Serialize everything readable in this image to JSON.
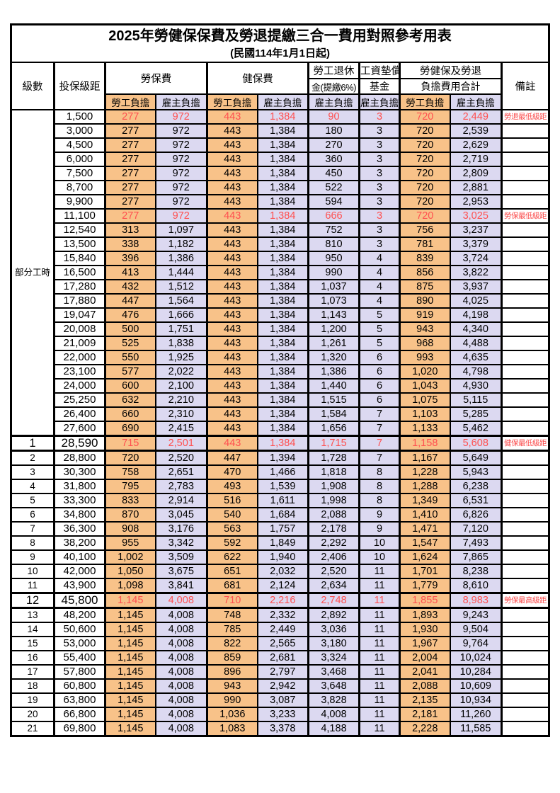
{
  "title": "2025年勞健保保費及勞退提繳三合一費用對照參考用表",
  "subtitle": "(民國114年1月1日起)",
  "header": {
    "level": "級數",
    "bracket": "投保級距",
    "labor_insurance": "勞保費",
    "health_insurance": "健保費",
    "pension_line1": "勞工退休",
    "pension_line2": "金(提繳6%)",
    "wage_fund_line1": "工資墊償",
    "wage_fund_line2": "基金",
    "total_line1": "勞健保及勞退",
    "total_line2": "負擔費用合計",
    "remark": "備註",
    "worker_label": "勞工負擔",
    "employer_label": "雇主負擔"
  },
  "colors": {
    "worker_fill": "#F8C289",
    "employer_fill": "#DCD9F1",
    "highlight_red": "#FF5050",
    "border": "#000000"
  },
  "part_time_label": "部分工時",
  "part_time_span": 23,
  "rows": [
    {
      "level": "",
      "bracket": "1,500",
      "values": [
        "277",
        "972",
        "443",
        "1,384",
        "90",
        "3",
        "720",
        "2,449"
      ],
      "note": "勞退最低級距",
      "red": true,
      "emphasis": false
    },
    {
      "level": "",
      "bracket": "3,000",
      "values": [
        "277",
        "972",
        "443",
        "1,384",
        "180",
        "3",
        "720",
        "2,539"
      ],
      "note": "",
      "red": false,
      "emphasis": false
    },
    {
      "level": "",
      "bracket": "4,500",
      "values": [
        "277",
        "972",
        "443",
        "1,384",
        "270",
        "3",
        "720",
        "2,629"
      ],
      "note": "",
      "red": false,
      "emphasis": false
    },
    {
      "level": "",
      "bracket": "6,000",
      "values": [
        "277",
        "972",
        "443",
        "1,384",
        "360",
        "3",
        "720",
        "2,719"
      ],
      "note": "",
      "red": false,
      "emphasis": false
    },
    {
      "level": "",
      "bracket": "7,500",
      "values": [
        "277",
        "972",
        "443",
        "1,384",
        "450",
        "3",
        "720",
        "2,809"
      ],
      "note": "",
      "red": false,
      "emphasis": false
    },
    {
      "level": "",
      "bracket": "8,700",
      "values": [
        "277",
        "972",
        "443",
        "1,384",
        "522",
        "3",
        "720",
        "2,881"
      ],
      "note": "",
      "red": false,
      "emphasis": false
    },
    {
      "level": "",
      "bracket": "9,900",
      "values": [
        "277",
        "972",
        "443",
        "1,384",
        "594",
        "3",
        "720",
        "2,953"
      ],
      "note": "",
      "red": false,
      "emphasis": false
    },
    {
      "level": "",
      "bracket": "11,100",
      "values": [
        "277",
        "972",
        "443",
        "1,384",
        "666",
        "3",
        "720",
        "3,025"
      ],
      "note": "勞保最低級距",
      "red": true,
      "emphasis": false
    },
    {
      "level": "",
      "bracket": "12,540",
      "values": [
        "313",
        "1,097",
        "443",
        "1,384",
        "752",
        "3",
        "756",
        "3,237"
      ],
      "note": "",
      "red": false,
      "emphasis": false
    },
    {
      "level": "",
      "bracket": "13,500",
      "values": [
        "338",
        "1,182",
        "443",
        "1,384",
        "810",
        "3",
        "781",
        "3,379"
      ],
      "note": "",
      "red": false,
      "emphasis": false
    },
    {
      "level": "",
      "bracket": "15,840",
      "values": [
        "396",
        "1,386",
        "443",
        "1,384",
        "950",
        "4",
        "839",
        "3,724"
      ],
      "note": "",
      "red": false,
      "emphasis": false
    },
    {
      "level": "",
      "bracket": "16,500",
      "values": [
        "413",
        "1,444",
        "443",
        "1,384",
        "990",
        "4",
        "856",
        "3,822"
      ],
      "note": "",
      "red": false,
      "emphasis": false
    },
    {
      "level": "",
      "bracket": "17,280",
      "values": [
        "432",
        "1,512",
        "443",
        "1,384",
        "1,037",
        "4",
        "875",
        "3,937"
      ],
      "note": "",
      "red": false,
      "emphasis": false
    },
    {
      "level": "",
      "bracket": "17,880",
      "values": [
        "447",
        "1,564",
        "443",
        "1,384",
        "1,073",
        "4",
        "890",
        "4,025"
      ],
      "note": "",
      "red": false,
      "emphasis": false
    },
    {
      "level": "",
      "bracket": "19,047",
      "values": [
        "476",
        "1,666",
        "443",
        "1,384",
        "1,143",
        "5",
        "919",
        "4,198"
      ],
      "note": "",
      "red": false,
      "emphasis": false
    },
    {
      "level": "",
      "bracket": "20,008",
      "values": [
        "500",
        "1,751",
        "443",
        "1,384",
        "1,200",
        "5",
        "943",
        "4,340"
      ],
      "note": "",
      "red": false,
      "emphasis": false
    },
    {
      "level": "",
      "bracket": "21,009",
      "values": [
        "525",
        "1,838",
        "443",
        "1,384",
        "1,261",
        "5",
        "968",
        "4,488"
      ],
      "note": "",
      "red": false,
      "emphasis": false
    },
    {
      "level": "",
      "bracket": "22,000",
      "values": [
        "550",
        "1,925",
        "443",
        "1,384",
        "1,320",
        "6",
        "993",
        "4,635"
      ],
      "note": "",
      "red": false,
      "emphasis": false
    },
    {
      "level": "",
      "bracket": "23,100",
      "values": [
        "577",
        "2,022",
        "443",
        "1,384",
        "1,386",
        "6",
        "1,020",
        "4,798"
      ],
      "note": "",
      "red": false,
      "emphasis": false
    },
    {
      "level": "",
      "bracket": "24,000",
      "values": [
        "600",
        "2,100",
        "443",
        "1,384",
        "1,440",
        "6",
        "1,043",
        "4,930"
      ],
      "note": "",
      "red": false,
      "emphasis": false
    },
    {
      "level": "",
      "bracket": "25,250",
      "values": [
        "632",
        "2,210",
        "443",
        "1,384",
        "1,515",
        "6",
        "1,075",
        "5,115"
      ],
      "note": "",
      "red": false,
      "emphasis": false
    },
    {
      "level": "",
      "bracket": "26,400",
      "values": [
        "660",
        "2,310",
        "443",
        "1,384",
        "1,584",
        "7",
        "1,103",
        "5,285"
      ],
      "note": "",
      "red": false,
      "emphasis": false
    },
    {
      "level": "",
      "bracket": "27,600",
      "values": [
        "690",
        "2,415",
        "443",
        "1,384",
        "1,656",
        "7",
        "1,133",
        "5,462"
      ],
      "note": "",
      "red": false,
      "emphasis": false
    },
    {
      "level": "1",
      "bracket": "28,590",
      "values": [
        "715",
        "2,501",
        "443",
        "1,384",
        "1,715",
        "7",
        "1,158",
        "5,608"
      ],
      "note": "健保最低級距",
      "red": true,
      "emphasis": true
    },
    {
      "level": "2",
      "bracket": "28,800",
      "values": [
        "720",
        "2,520",
        "447",
        "1,394",
        "1,728",
        "7",
        "1,167",
        "5,649"
      ],
      "note": "",
      "red": false,
      "emphasis": false
    },
    {
      "level": "3",
      "bracket": "30,300",
      "values": [
        "758",
        "2,651",
        "470",
        "1,466",
        "1,818",
        "8",
        "1,228",
        "5,943"
      ],
      "note": "",
      "red": false,
      "emphasis": false
    },
    {
      "level": "4",
      "bracket": "31,800",
      "values": [
        "795",
        "2,783",
        "493",
        "1,539",
        "1,908",
        "8",
        "1,288",
        "6,238"
      ],
      "note": "",
      "red": false,
      "emphasis": false
    },
    {
      "level": "5",
      "bracket": "33,300",
      "values": [
        "833",
        "2,914",
        "516",
        "1,611",
        "1,998",
        "8",
        "1,349",
        "6,531"
      ],
      "note": "",
      "red": false,
      "emphasis": false
    },
    {
      "level": "6",
      "bracket": "34,800",
      "values": [
        "870",
        "3,045",
        "540",
        "1,684",
        "2,088",
        "9",
        "1,410",
        "6,826"
      ],
      "note": "",
      "red": false,
      "emphasis": false
    },
    {
      "level": "7",
      "bracket": "36,300",
      "values": [
        "908",
        "3,176",
        "563",
        "1,757",
        "2,178",
        "9",
        "1,471",
        "7,120"
      ],
      "note": "",
      "red": false,
      "emphasis": false
    },
    {
      "level": "8",
      "bracket": "38,200",
      "values": [
        "955",
        "3,342",
        "592",
        "1,849",
        "2,292",
        "10",
        "1,547",
        "7,493"
      ],
      "note": "",
      "red": false,
      "emphasis": false
    },
    {
      "level": "9",
      "bracket": "40,100",
      "values": [
        "1,002",
        "3,509",
        "622",
        "1,940",
        "2,406",
        "10",
        "1,624",
        "7,865"
      ],
      "note": "",
      "red": false,
      "emphasis": false
    },
    {
      "level": "10",
      "bracket": "42,000",
      "values": [
        "1,050",
        "3,675",
        "651",
        "2,032",
        "2,520",
        "11",
        "1,701",
        "8,238"
      ],
      "note": "",
      "red": false,
      "emphasis": false
    },
    {
      "level": "11",
      "bracket": "43,900",
      "values": [
        "1,098",
        "3,841",
        "681",
        "2,124",
        "2,634",
        "11",
        "1,779",
        "8,610"
      ],
      "note": "",
      "red": false,
      "emphasis": false
    },
    {
      "level": "12",
      "bracket": "45,800",
      "values": [
        "1,145",
        "4,008",
        "710",
        "2,216",
        "2,748",
        "11",
        "1,855",
        "8,983"
      ],
      "note": "勞保最高級距",
      "red": true,
      "emphasis": true
    },
    {
      "level": "13",
      "bracket": "48,200",
      "values": [
        "1,145",
        "4,008",
        "748",
        "2,332",
        "2,892",
        "11",
        "1,893",
        "9,243"
      ],
      "note": "",
      "red": false,
      "emphasis": false
    },
    {
      "level": "14",
      "bracket": "50,600",
      "values": [
        "1,145",
        "4,008",
        "785",
        "2,449",
        "3,036",
        "11",
        "1,930",
        "9,504"
      ],
      "note": "",
      "red": false,
      "emphasis": false
    },
    {
      "level": "15",
      "bracket": "53,000",
      "values": [
        "1,145",
        "4,008",
        "822",
        "2,565",
        "3,180",
        "11",
        "1,967",
        "9,764"
      ],
      "note": "",
      "red": false,
      "emphasis": false
    },
    {
      "level": "16",
      "bracket": "55,400",
      "values": [
        "1,145",
        "4,008",
        "859",
        "2,681",
        "3,324",
        "11",
        "2,004",
        "10,024"
      ],
      "note": "",
      "red": false,
      "emphasis": false
    },
    {
      "level": "17",
      "bracket": "57,800",
      "values": [
        "1,145",
        "4,008",
        "896",
        "2,797",
        "3,468",
        "11",
        "2,041",
        "10,284"
      ],
      "note": "",
      "red": false,
      "emphasis": false
    },
    {
      "level": "18",
      "bracket": "60,800",
      "values": [
        "1,145",
        "4,008",
        "943",
        "2,942",
        "3,648",
        "11",
        "2,088",
        "10,609"
      ],
      "note": "",
      "red": false,
      "emphasis": false
    },
    {
      "level": "19",
      "bracket": "63,800",
      "values": [
        "1,145",
        "4,008",
        "990",
        "3,087",
        "3,828",
        "11",
        "2,135",
        "10,934"
      ],
      "note": "",
      "red": false,
      "emphasis": false
    },
    {
      "level": "20",
      "bracket": "66,800",
      "values": [
        "1,145",
        "4,008",
        "1,036",
        "3,233",
        "4,008",
        "11",
        "2,181",
        "11,260"
      ],
      "note": "",
      "red": false,
      "emphasis": false
    },
    {
      "level": "21",
      "bracket": "69,800",
      "values": [
        "1,145",
        "4,008",
        "1,083",
        "3,378",
        "4,188",
        "11",
        "2,228",
        "11,585"
      ],
      "note": "",
      "red": false,
      "emphasis": false
    }
  ]
}
